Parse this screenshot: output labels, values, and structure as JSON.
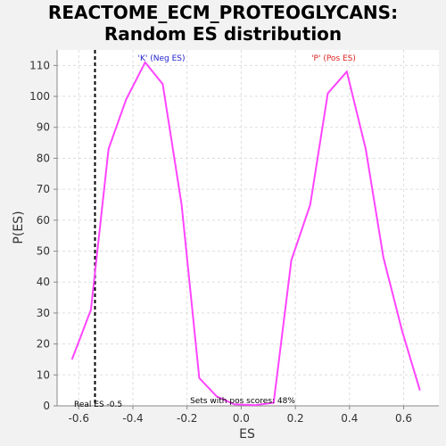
{
  "title_line1": "REACTOME_ECM_PROTEOGLYCANS:",
  "title_line2": "Random ES distribution",
  "annotations": {
    "neg_label": "'K' (Neg ES)",
    "pos_label": "'P' (Pos ES)",
    "real_es": "Real ES -0.5",
    "pos_fraction": "Sets with pos scores: 48%"
  },
  "colors": {
    "curve": "#ff44ff",
    "neg_label": "#2222cc",
    "pos_label": "#dd2222",
    "grid": "#dddddd",
    "plot_bg": "#ffffff",
    "real_es_line": "#000000"
  },
  "chart_data": {
    "type": "line",
    "xlabel": "ES",
    "ylabel": "P(ES)",
    "xlim": [
      -0.68,
      0.73
    ],
    "ylim": [
      0,
      115
    ],
    "xticks": [
      -0.6,
      -0.4,
      -0.2,
      0.0,
      0.2,
      0.4,
      0.6
    ],
    "xtick_labels": [
      "-0.6",
      "-0.4",
      "-0.2",
      "0.0",
      "0.2",
      "0.4",
      "0.6"
    ],
    "yticks": [
      0,
      10,
      20,
      30,
      40,
      50,
      60,
      70,
      80,
      90,
      100,
      110
    ],
    "ytick_labels": [
      "0",
      "10",
      "20",
      "30",
      "40",
      "50",
      "60",
      "70",
      "80",
      "90",
      "100",
      "110"
    ],
    "grid": true,
    "real_es_value": -0.54,
    "series": [
      {
        "x": [
          -0.625,
          -0.555,
          -0.49,
          -0.425,
          -0.355,
          -0.29,
          -0.22,
          -0.155,
          -0.09,
          -0.025,
          0.05,
          0.12,
          0.185,
          0.255,
          0.32,
          0.39,
          0.46,
          0.525,
          0.595,
          0.66
        ],
        "y": [
          15,
          31,
          83,
          99,
          111,
          104,
          65,
          9,
          3,
          0.5,
          0.2,
          1,
          47,
          65,
          101,
          108,
          83,
          48,
          24,
          5
        ]
      }
    ]
  }
}
